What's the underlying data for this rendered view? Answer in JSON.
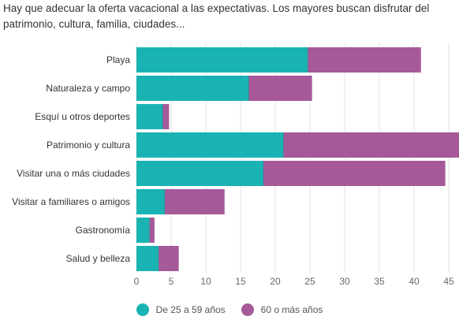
{
  "chart_data": {
    "type": "bar",
    "orientation": "horizontal",
    "stacked": true,
    "title": "Hay que adecuar la oferta vacacional a las expectativas. Los mayores buscan disfrutar del patrimonio, cultura, familia, ciudades...",
    "categories": [
      "Playa",
      "Naturaleza y campo",
      "Esquí u otros deportes",
      "Patrimonio y cultura",
      "Visitar una o más ciudades",
      "Visitar a familiares o amigos",
      "Gastronomía",
      "Salud y belleza"
    ],
    "series": [
      {
        "name": "De 25 a 59 años",
        "color": "#1ab3b3",
        "values": [
          24.7,
          16.2,
          3.8,
          21.2,
          18.3,
          4.1,
          1.9,
          3.2
        ]
      },
      {
        "name": "60 o más años",
        "color": "#a65999",
        "values": [
          16.3,
          9.1,
          0.9,
          27.5,
          26.2,
          8.6,
          0.7,
          2.9
        ]
      }
    ],
    "xlim": [
      0,
      48
    ],
    "xticks": [
      0,
      5,
      10,
      15,
      20,
      25,
      30,
      35,
      40,
      45
    ],
    "grid": true,
    "legend_position": "bottom"
  }
}
